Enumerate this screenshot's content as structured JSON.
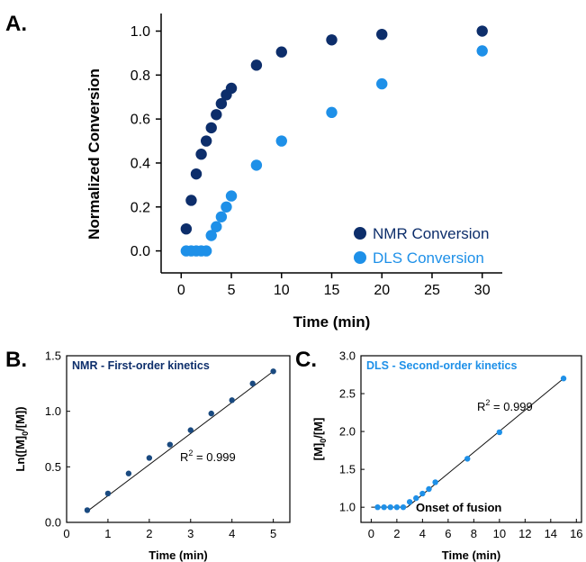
{
  "panels": {
    "a": {
      "letter": "A."
    },
    "b": {
      "letter": "B."
    },
    "c": {
      "letter": "C."
    }
  },
  "chart_data": [
    {
      "id": "a",
      "type": "scatter",
      "title": "",
      "xlabel": "Time (min)",
      "ylabel": "Normalized Conversion",
      "xlim": [
        -2,
        32
      ],
      "ylim": [
        -0.1,
        1.08
      ],
      "xticks": [
        0,
        5,
        10,
        15,
        20,
        25,
        30
      ],
      "yticks": [
        0.0,
        0.2,
        0.4,
        0.6,
        0.8,
        1.0
      ],
      "ytick_decimals": 1,
      "legend_position": "bottom-right",
      "series": [
        {
          "name": "NMR Conversion",
          "color": "#0d2e6b",
          "x": [
            0.5,
            1,
            1.5,
            2,
            2.5,
            3,
            3.5,
            4,
            4.5,
            5,
            7.5,
            10,
            15,
            20,
            30
          ],
          "y": [
            0.1,
            0.23,
            0.35,
            0.44,
            0.5,
            0.56,
            0.62,
            0.67,
            0.71,
            0.74,
            0.845,
            0.905,
            0.96,
            0.985,
            1.0
          ]
        },
        {
          "name": "DLS Conversion",
          "color": "#1e90e8",
          "x": [
            0.5,
            1,
            1.5,
            2,
            2.5,
            3,
            3.5,
            4,
            4.5,
            5,
            7.5,
            10,
            15,
            20,
            30
          ],
          "y": [
            0.0,
            0.0,
            0.0,
            0.0,
            0.0,
            0.07,
            0.11,
            0.155,
            0.2,
            0.25,
            0.39,
            0.5,
            0.63,
            0.76,
            0.91
          ]
        }
      ]
    },
    {
      "id": "b",
      "type": "scatter",
      "title": "NMR - First-order kinetics",
      "title_color": "#0d2e6b",
      "xlabel": "Time (min)",
      "ylabel_main": "Ln([M]",
      "ylabel_sub": "0",
      "ylabel_tail": "/[M])",
      "xlim": [
        0,
        5.4
      ],
      "ylim": [
        0,
        1.5
      ],
      "xticks": [
        0,
        1,
        2,
        3,
        4,
        5
      ],
      "yticks": [
        0.0,
        0.5,
        1.0,
        1.5
      ],
      "ytick_decimals": 1,
      "annotation_main": "R",
      "annotation_sup": "2",
      "annotation_tail": " = 0.999",
      "point_color": "#1a4a80",
      "fit_line": {
        "x": [
          0.5,
          5
        ],
        "y": [
          0.1,
          1.36
        ]
      },
      "series": [
        {
          "x": [
            0.5,
            1,
            1.5,
            2,
            2.5,
            3,
            3.5,
            4,
            4.5,
            5
          ],
          "y": [
            0.11,
            0.26,
            0.44,
            0.58,
            0.7,
            0.83,
            0.98,
            1.1,
            1.25,
            1.36
          ]
        }
      ]
    },
    {
      "id": "c",
      "type": "scatter",
      "title": "DLS - Second-order kinetics",
      "title_color": "#1e90e8",
      "xlabel": "Time (min)",
      "ylabel_main": "[M]",
      "ylabel_sub": "0",
      "ylabel_tail": "/[M]",
      "xlim": [
        -0.8,
        16.4
      ],
      "ylim": [
        0.8,
        3.0
      ],
      "xticks": [
        0,
        2,
        4,
        6,
        8,
        10,
        12,
        14,
        16
      ],
      "yticks": [
        1.0,
        1.5,
        2.0,
        2.5,
        3.0
      ],
      "ytick_decimals": 1,
      "annotation_main": "R",
      "annotation_sup": "2",
      "annotation_tail": " = 0.999",
      "onset_label": "Onset of fusion",
      "point_color": "#1e90e8",
      "flat_line": {
        "x": [
          0,
          2.8
        ],
        "y": [
          1.0,
          1.0
        ]
      },
      "fit_line": {
        "x": [
          2.8,
          15
        ],
        "y": [
          1.0,
          2.7
        ]
      },
      "series": [
        {
          "x": [
            0.5,
            1,
            1.5,
            2,
            2.5,
            3,
            3.5,
            4,
            4.5,
            5,
            7.5,
            10,
            15
          ],
          "y": [
            1.0,
            1.0,
            1.0,
            1.0,
            1.0,
            1.07,
            1.12,
            1.18,
            1.24,
            1.33,
            1.64,
            1.99,
            2.7
          ]
        }
      ]
    }
  ]
}
